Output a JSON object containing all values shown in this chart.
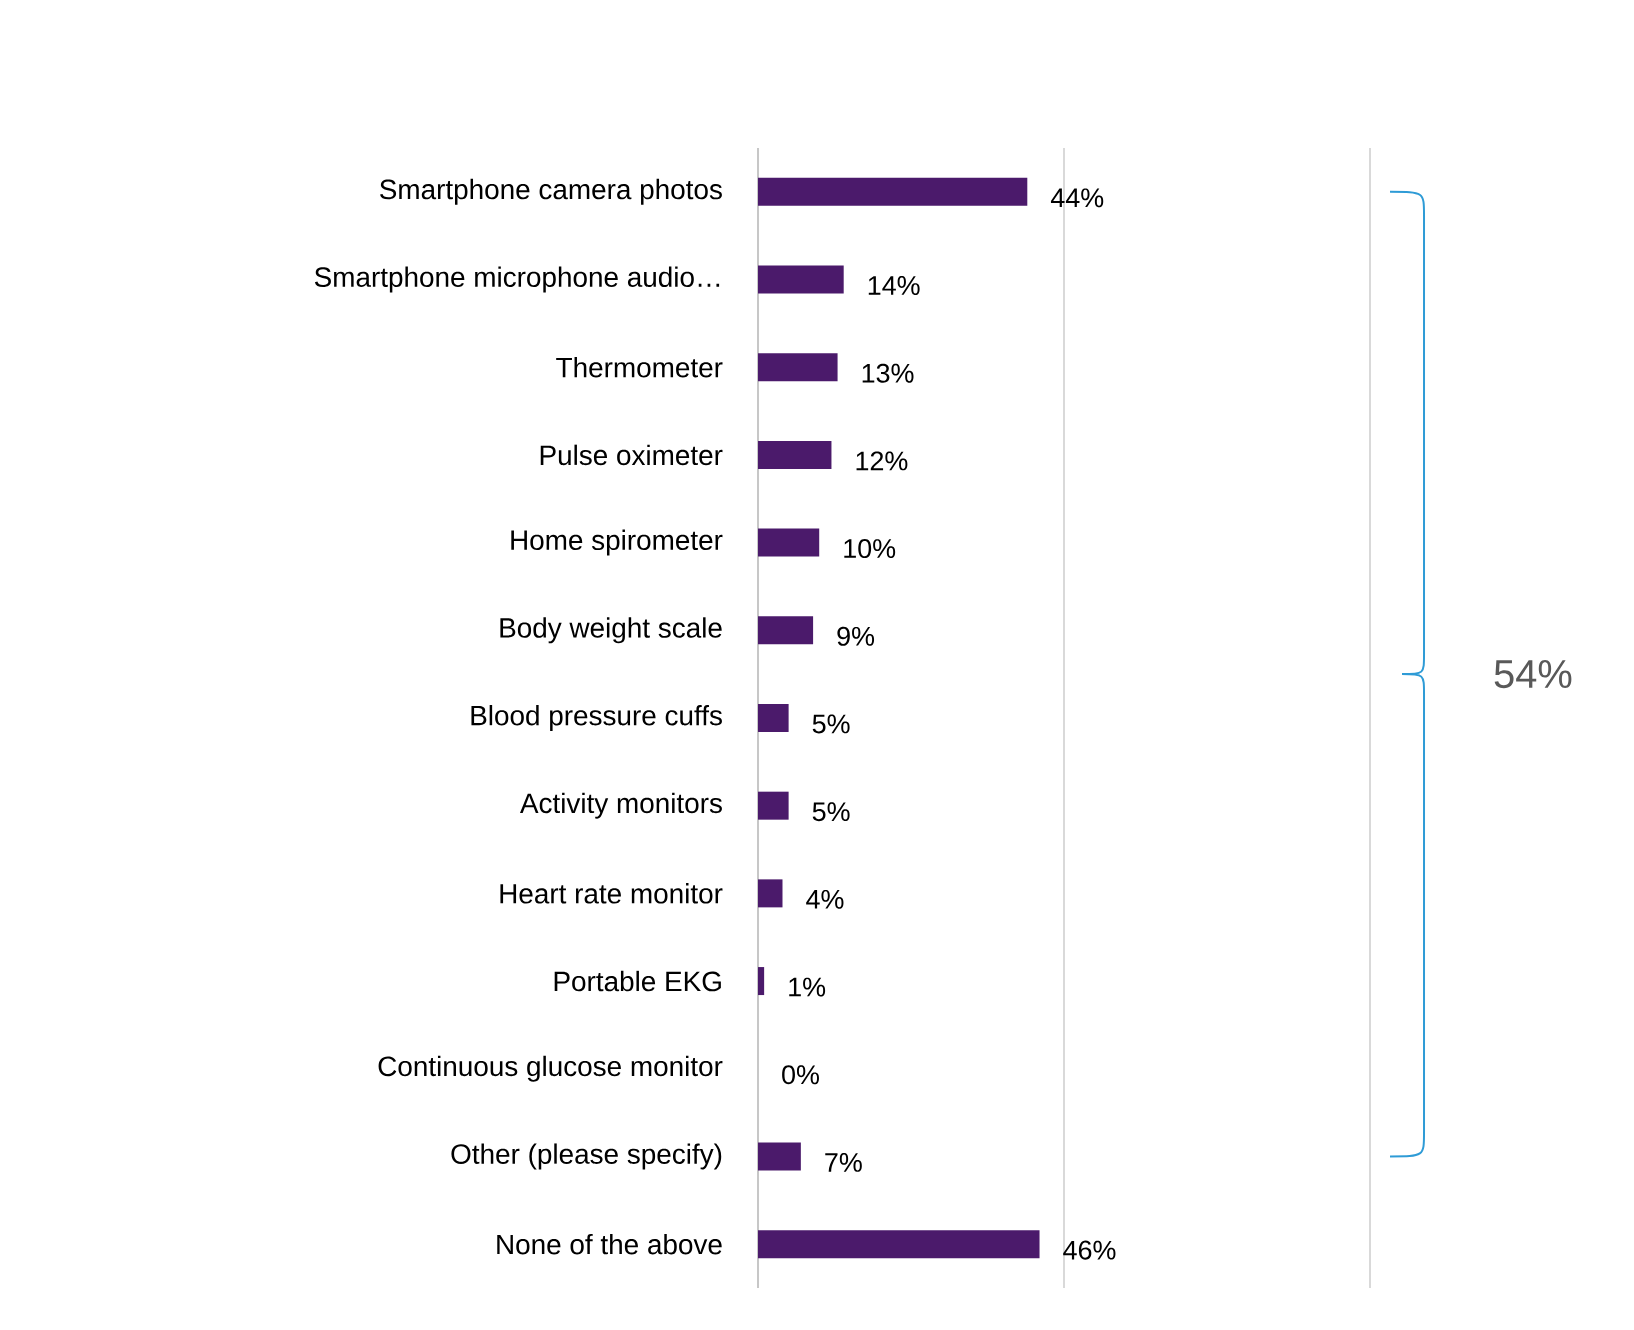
{
  "chart_data": {
    "type": "bar",
    "orientation": "horizontal",
    "categories": [
      "Smartphone camera photos",
      "Smartphone microphone audio…",
      "Thermometer",
      "Pulse oximeter",
      "Home spirometer",
      "Body weight scale",
      "Blood pressure cuffs",
      "Activity monitors",
      "Heart rate monitor",
      "Portable EKG",
      "Continuous glucose monitor",
      "Other (please specify)",
      "None of the above"
    ],
    "values": [
      44,
      14,
      13,
      12,
      10,
      9,
      5,
      5,
      4,
      1,
      0,
      7,
      46
    ],
    "value_labels": [
      "44%",
      "14%",
      "13%",
      "12%",
      "10%",
      "9%",
      "5%",
      "5%",
      "4%",
      "1%",
      "0%",
      "7%",
      "46%"
    ],
    "color": "#4b1a6b",
    "xlim": [
      0,
      100
    ],
    "tick_labels": "y",
    "ref_lines": [
      {
        "axis": "x",
        "value": 50,
        "color": "#d9d9d9"
      },
      {
        "axis": "x",
        "value": 100,
        "color": "#d9d9d9"
      }
    ],
    "annotations": [
      "54%"
    ]
  }
}
